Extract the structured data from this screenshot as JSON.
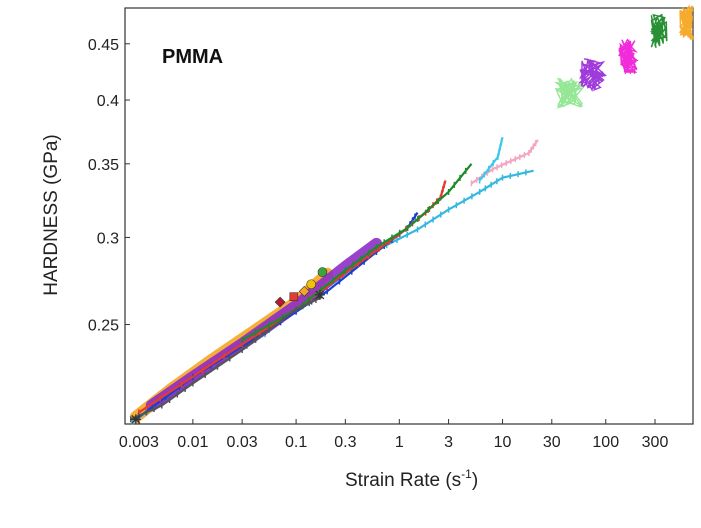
{
  "chart_data": {
    "type": "scatter",
    "annotation": "PMMA",
    "xlabel": "Strain Rate (s",
    "xlabel_sup": "-1",
    "xlabel_close": ")",
    "ylabel": "HARDNESS (GPa)",
    "x_scale": "log",
    "y_scale": "log",
    "xlim": [
      0.0022,
      700
    ],
    "ylim": [
      0.203,
      0.485
    ],
    "x_ticks": [
      {
        "value": 0.003,
        "label": "0.003"
      },
      {
        "value": 0.01,
        "label": "0.01"
      },
      {
        "value": 0.03,
        "label": "0.03"
      },
      {
        "value": 0.1,
        "label": "0.1"
      },
      {
        "value": 0.3,
        "label": "0.3"
      },
      {
        "value": 1,
        "label": "1"
      },
      {
        "value": 3,
        "label": "3"
      },
      {
        "value": 10,
        "label": "10"
      },
      {
        "value": 30,
        "label": "30"
      },
      {
        "value": 100,
        "label": "100"
      },
      {
        "value": 300,
        "label": "300"
      }
    ],
    "y_ticks": [
      {
        "value": 0.25,
        "label": "0.25"
      },
      {
        "value": 0.3,
        "label": "0.3"
      },
      {
        "value": 0.35,
        "label": "0.35"
      },
      {
        "value": 0.4,
        "label": "0.4"
      },
      {
        "value": 0.45,
        "label": "0.45"
      }
    ],
    "grid": false,
    "legend": "none",
    "series": [
      {
        "color": "#f5a623",
        "style": "band",
        "x": [
          0.0028,
          0.006,
          0.015,
          0.04,
          0.1,
          0.2
        ],
        "y": [
          0.206,
          0.218,
          0.232,
          0.247,
          0.262,
          0.278
        ]
      },
      {
        "color": "#35b8e0",
        "style": "line",
        "x": [
          0.0026,
          0.01,
          0.05,
          0.2,
          0.6,
          1.5,
          3,
          6,
          10,
          20
        ],
        "y": [
          0.204,
          0.222,
          0.245,
          0.27,
          0.292,
          0.305,
          0.318,
          0.33,
          0.34,
          0.345
        ]
      },
      {
        "color": "#8e2dc7",
        "style": "band",
        "x": [
          0.004,
          0.01,
          0.03,
          0.1,
          0.3,
          0.6
        ],
        "y": [
          0.211,
          0.224,
          0.24,
          0.26,
          0.282,
          0.296
        ]
      },
      {
        "color": "#1a3fd0",
        "style": "line",
        "x": [
          0.003,
          0.01,
          0.05,
          0.2,
          0.6,
          1.2,
          1.5
        ],
        "y": [
          0.206,
          0.224,
          0.246,
          0.268,
          0.291,
          0.306,
          0.316
        ]
      },
      {
        "color": "#e63a2c",
        "style": "line",
        "x": [
          0.003,
          0.02,
          0.1,
          0.4,
          1,
          1.8,
          2.5,
          2.8
        ],
        "y": [
          0.208,
          0.234,
          0.258,
          0.284,
          0.302,
          0.316,
          0.326,
          0.338
        ]
      },
      {
        "color": "#1e8a2e",
        "style": "line",
        "x": [
          0.03,
          0.1,
          0.3,
          0.6,
          1.2,
          3,
          5
        ],
        "y": [
          0.242,
          0.258,
          0.28,
          0.294,
          0.306,
          0.33,
          0.35
        ]
      },
      {
        "color": "#555555",
        "style": "line",
        "x": [
          0.0025,
          0.005,
          0.01,
          0.03,
          0.1,
          0.18
        ],
        "y": [
          0.205,
          0.211,
          0.221,
          0.237,
          0.258,
          0.265
        ]
      },
      {
        "color": "#f4a6c0",
        "style": "line",
        "x": [
          5,
          8,
          12,
          18,
          22
        ],
        "y": [
          0.336,
          0.346,
          0.352,
          0.358,
          0.368
        ]
      },
      {
        "color": "#3cc9e8",
        "style": "line",
        "x": [
          6,
          9,
          10
        ],
        "y": [
          0.338,
          0.355,
          0.37
        ]
      },
      {
        "color": "#8ee68e",
        "style": "cluster",
        "x": [
          35,
          45,
          55
        ],
        "y": [
          0.402,
          0.406,
          0.41
        ]
      },
      {
        "color": "#9b30d9",
        "style": "cluster",
        "x": [
          60,
          75,
          90
        ],
        "y": [
          0.418,
          0.422,
          0.428
        ]
      },
      {
        "color": "#f020d8",
        "style": "cluster",
        "x": [
          145,
          165,
          185
        ],
        "y": [
          0.432,
          0.438,
          0.445
        ]
      },
      {
        "color": "#1c8a2a",
        "style": "cluster",
        "x": [
          300,
          330,
          360
        ],
        "y": [
          0.455,
          0.462,
          0.468
        ]
      },
      {
        "color": "#f5a623",
        "style": "cluster",
        "x": [
          560,
          600,
          640
        ],
        "y": [
          0.463,
          0.47,
          0.477
        ]
      }
    ],
    "markers": [
      {
        "color": "#3aa63a",
        "shape": "circle",
        "x": 0.18,
        "y": 0.279
      },
      {
        "color": "#f2c200",
        "shape": "circle",
        "x": 0.14,
        "y": 0.272
      },
      {
        "color": "#f5a623",
        "shape": "diamond",
        "x": 0.12,
        "y": 0.268
      },
      {
        "color": "#b3192f",
        "shape": "diamond",
        "x": 0.07,
        "y": 0.262
      },
      {
        "color": "#e63a2c",
        "shape": "square",
        "x": 0.095,
        "y": 0.265
      },
      {
        "color": "#333333",
        "shape": "asterisk",
        "x": 0.17,
        "y": 0.266
      },
      {
        "color": "#333333",
        "shape": "asterisk",
        "x": 0.0028,
        "y": 0.205
      }
    ]
  }
}
